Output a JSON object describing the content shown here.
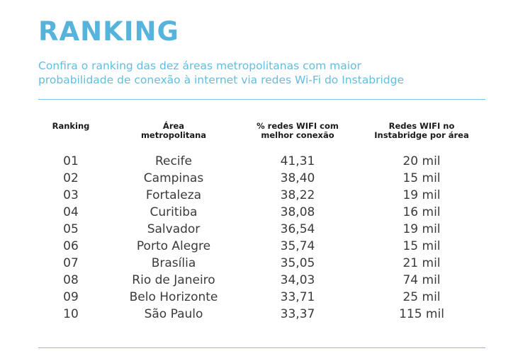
{
  "header": {
    "title": "RANKING",
    "subtitle": "Confira o ranking das dez áreas metropolitanas com maior\nprobabilidade de conexão à internet via redes Wi-Fi do Instabridge"
  },
  "table": {
    "columns": [
      "Ranking",
      "Área\nmetropolitana",
      "% redes WIFI com\nmelhor conexão",
      "Redes WIFI no\nInstabridge por área"
    ],
    "rows": [
      [
        "01",
        "Recife",
        "41,31",
        "20 mil"
      ],
      [
        "02",
        "Campinas",
        "38,40",
        "15 mil"
      ],
      [
        "03",
        "Fortaleza",
        "38,22",
        "19 mil"
      ],
      [
        "04",
        "Curitiba",
        "38,08",
        "16 mil"
      ],
      [
        "05",
        "Salvador",
        "36,54",
        "19 mil"
      ],
      [
        "06",
        "Porto Alegre",
        "35,74",
        "15 mil"
      ],
      [
        "07",
        "Brasília",
        "35,05",
        "21 mil"
      ],
      [
        "08",
        "Rio de Janeiro",
        "34,03",
        "74 mil"
      ],
      [
        "09",
        "Belo Horizonte",
        "33,71",
        "25 mil"
      ],
      [
        "10",
        "São Paulo",
        "33,37",
        "115 mil"
      ]
    ]
  },
  "colors": {
    "accent": "#56b4dc",
    "rule": "#7cc6e4",
    "text": "#3a3a3a"
  }
}
